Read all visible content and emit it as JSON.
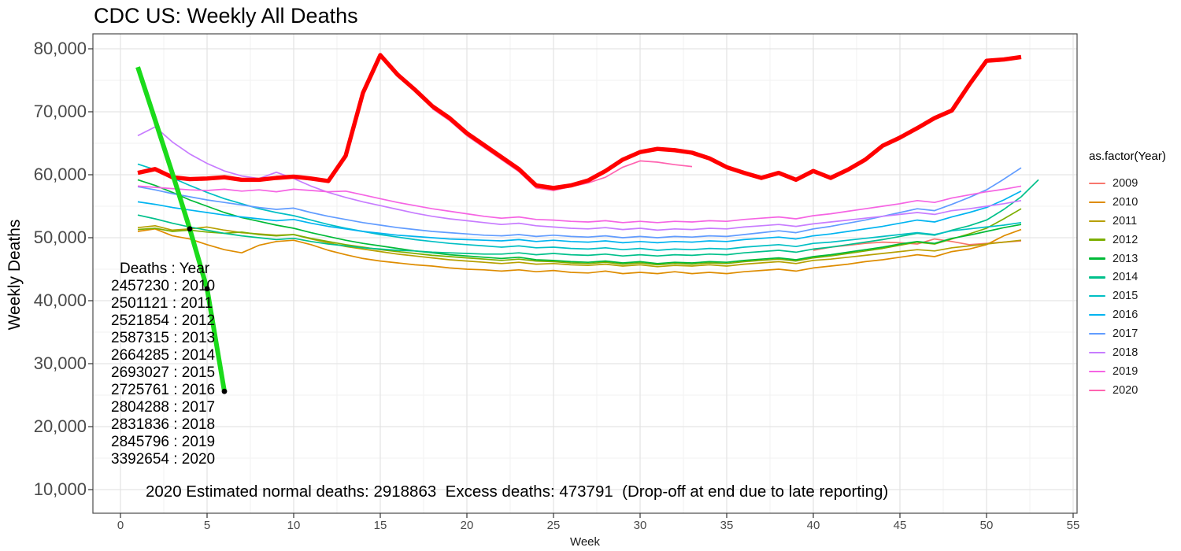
{
  "page": {
    "title": "CDC US: Weekly All Deaths"
  },
  "axes": {
    "x": {
      "label": "Week",
      "tick_values": [
        0,
        5,
        10,
        15,
        20,
        25,
        30,
        35,
        40,
        45,
        50,
        55
      ]
    },
    "y": {
      "label": "Weekly Deaths",
      "tick_values": [
        10000,
        20000,
        30000,
        40000,
        50000,
        60000,
        70000,
        80000
      ],
      "tick_labels": [
        "10,000",
        "20,000",
        "30,000",
        "40,000",
        "50,000",
        "60,000",
        "70,000",
        "80,000"
      ]
    }
  },
  "legend": {
    "title": "as.factor(Year)",
    "items": [
      {
        "year": "2009",
        "color": "#F8766D"
      },
      {
        "year": "2010",
        "color": "#DE8C00"
      },
      {
        "year": "2011",
        "color": "#B79F00"
      },
      {
        "year": "2012",
        "color": "#7CAE00"
      },
      {
        "year": "2013",
        "color": "#00BA38"
      },
      {
        "year": "2014",
        "color": "#00C08B"
      },
      {
        "year": "2015",
        "color": "#00BFC4"
      },
      {
        "year": "2016",
        "color": "#00B4F0"
      },
      {
        "year": "2017",
        "color": "#619CFF"
      },
      {
        "year": "2018",
        "color": "#C77CFF"
      },
      {
        "year": "2019",
        "color": "#F564E3"
      },
      {
        "year": "2020",
        "color": "#FF64B0"
      }
    ]
  },
  "annotations": {
    "deaths_table": {
      "header": "Deaths : Year",
      "rows": [
        "2457230 : 2010",
        "2501121 : 2011",
        "2521854 : 2012",
        "2587315 : 2013",
        "2664285 : 2014",
        "2693027 : 2015",
        "2725761 : 2016",
        "2804288 : 2017",
        "2831836 : 2018",
        "2845796 : 2019",
        "3392654 : 2020"
      ]
    },
    "bottom_note": "2020 Estimated normal deaths: 2918863  Excess deaths: 473791  (Drop-off at end due to late reporting)"
  },
  "chart_data": {
    "type": "line",
    "title": "CDC US: Weekly All Deaths",
    "xlabel": "Week",
    "ylabel": "Weekly Deaths",
    "xlim": [
      -1.6,
      55.2
    ],
    "ylim": [
      6250,
      82500
    ],
    "grid": "major+minor",
    "legend_position": "right",
    "series": [
      {
        "name": "2009",
        "color": "#F8766D",
        "width": 1.7,
        "x": [
          40,
          41,
          42,
          43,
          44,
          45,
          46,
          47,
          48,
          49,
          50,
          51,
          52
        ],
        "y": [
          48000,
          48500,
          48800,
          49100,
          49300,
          49200,
          49000,
          49800,
          49400,
          48900,
          49100,
          49300,
          49500
        ]
      },
      {
        "name": "2010",
        "color": "#DE8C00",
        "width": 1.7,
        "x_start": 1,
        "y": [
          51000,
          51400,
          50300,
          49800,
          48900,
          48100,
          47600,
          48800,
          49400,
          49600,
          48900,
          48000,
          47300,
          46700,
          46300,
          46000,
          45700,
          45500,
          45200,
          45000,
          44900,
          44700,
          44900,
          44600,
          44800,
          44500,
          44400,
          44700,
          44300,
          44500,
          44300,
          44600,
          44300,
          44500,
          44300,
          44600,
          44800,
          45000,
          44700,
          45200,
          45500,
          45800,
          46200,
          46500,
          46900,
          47300,
          47000,
          47800,
          48200,
          48900,
          50300,
          51300
        ]
      },
      {
        "name": "2011",
        "color": "#B79F00",
        "width": 1.7,
        "x_start": 1,
        "y": [
          51600,
          51900,
          51200,
          51400,
          51700,
          51200,
          50800,
          50600,
          50400,
          50500,
          49800,
          49200,
          48600,
          48200,
          47800,
          47400,
          47100,
          46800,
          46500,
          46300,
          46100,
          45900,
          46100,
          45800,
          45900,
          45700,
          45600,
          45800,
          45500,
          45700,
          45400,
          45600,
          45500,
          45700,
          45500,
          45800,
          46000,
          46200,
          45900,
          46400,
          46600,
          46900,
          47200,
          47500,
          47800,
          48100,
          47900,
          48400,
          48700,
          49000,
          49300,
          49600
        ]
      },
      {
        "name": "2012",
        "color": "#7CAE00",
        "width": 1.7,
        "x_start": 1,
        "y": [
          51300,
          51500,
          51000,
          51200,
          50900,
          50700,
          50900,
          50500,
          50300,
          50500,
          49900,
          49400,
          48900,
          48500,
          48100,
          47800,
          47500,
          47200,
          47000,
          46800,
          46600,
          46400,
          46600,
          46300,
          46200,
          46000,
          45900,
          46100,
          45800,
          46000,
          45700,
          45900,
          45800,
          46000,
          45900,
          46200,
          46400,
          46600,
          46300,
          46800,
          47100,
          47500,
          47900,
          48300,
          48800,
          49300,
          49000,
          49800,
          50600,
          51500,
          53000,
          54600
        ]
      },
      {
        "name": "2013",
        "color": "#00BA38",
        "width": 1.7,
        "x_start": 1,
        "y": [
          59200,
          58300,
          57200,
          56000,
          55000,
          54000,
          53200,
          52600,
          52000,
          51500,
          50800,
          50200,
          49600,
          49100,
          48700,
          48300,
          47900,
          47600,
          47300,
          47100,
          46900,
          46700,
          46900,
          46500,
          46400,
          46200,
          46100,
          46300,
          46000,
          46200,
          45900,
          46100,
          46000,
          46200,
          46100,
          46400,
          46600,
          46800,
          46500,
          47000,
          47300,
          47700,
          48100,
          48500,
          49000,
          49400,
          49100,
          49900,
          50400,
          51000,
          51600,
          52100
        ]
      },
      {
        "name": "2014",
        "color": "#00C08B",
        "width": 1.7,
        "x_start": 1,
        "y": [
          53600,
          53000,
          52300,
          51700,
          51200,
          50700,
          50300,
          50000,
          49700,
          49900,
          49400,
          49000,
          48700,
          48400,
          48200,
          48000,
          47900,
          47700,
          47600,
          47500,
          47400,
          47400,
          47600,
          47300,
          47500,
          47300,
          47200,
          47400,
          47100,
          47300,
          47100,
          47300,
          47200,
          47400,
          47300,
          47600,
          47800,
          48000,
          47700,
          48200,
          48500,
          48900,
          49300,
          49700,
          50200,
          50700,
          50400,
          51200,
          51900,
          52800,
          54500,
          56500,
          59200
        ]
      },
      {
        "name": "2015",
        "color": "#00BFC4",
        "width": 1.7,
        "x_start": 1,
        "y": [
          61700,
          60800,
          59500,
          58300,
          57200,
          56200,
          55400,
          54600,
          54000,
          53500,
          52800,
          52100,
          51500,
          51000,
          50500,
          50100,
          49700,
          49400,
          49100,
          48900,
          48700,
          48500,
          48700,
          48400,
          48500,
          48300,
          48200,
          48400,
          48100,
          48300,
          48000,
          48200,
          48100,
          48300,
          48200,
          48500,
          48700,
          48900,
          48600,
          49100,
          49300,
          49600,
          49900,
          50200,
          50500,
          50800,
          50500,
          51100,
          51400,
          51700,
          52000,
          52400
        ]
      },
      {
        "name": "2016",
        "color": "#00B4F0",
        "width": 1.7,
        "x_start": 1,
        "y": [
          55700,
          55300,
          54800,
          54400,
          54000,
          53600,
          53300,
          53000,
          52700,
          52900,
          52300,
          51800,
          51400,
          51000,
          50700,
          50400,
          50200,
          50000,
          49800,
          49700,
          49600,
          49500,
          49700,
          49400,
          49600,
          49400,
          49300,
          49500,
          49200,
          49400,
          49200,
          49400,
          49300,
          49500,
          49400,
          49700,
          49900,
          50100,
          49800,
          50300,
          50600,
          51000,
          51400,
          51800,
          52300,
          52800,
          52500,
          53300,
          54000,
          54800,
          56000,
          57400
        ]
      },
      {
        "name": "2017",
        "color": "#619CFF",
        "width": 1.7,
        "x_start": 1,
        "y": [
          58100,
          57600,
          57000,
          56500,
          56000,
          55600,
          55200,
          54800,
          54500,
          54700,
          54000,
          53400,
          52900,
          52400,
          52000,
          51600,
          51300,
          51000,
          50800,
          50600,
          50400,
          50300,
          50500,
          50200,
          50400,
          50200,
          50100,
          50300,
          50000,
          50200,
          50000,
          50200,
          50100,
          50300,
          50200,
          50500,
          50800,
          51100,
          50800,
          51400,
          51800,
          52300,
          52800,
          53400,
          54000,
          54600,
          54300,
          55300,
          56400,
          57600,
          59300,
          61100
        ]
      },
      {
        "name": "2018",
        "color": "#C77CFF",
        "width": 1.7,
        "x_start": 1,
        "y": [
          66200,
          67600,
          65200,
          63300,
          61800,
          60600,
          59800,
          59400,
          60400,
          59400,
          58200,
          57200,
          56400,
          55700,
          55100,
          54500,
          53900,
          53400,
          53000,
          52700,
          52400,
          52100,
          52300,
          51900,
          51700,
          51500,
          51400,
          51600,
          51300,
          51500,
          51200,
          51400,
          51300,
          51500,
          51400,
          51700,
          51900,
          52100,
          51800,
          52200,
          52500,
          52800,
          53100,
          53400,
          53700,
          54000,
          53700,
          54300,
          54600,
          55000,
          55400,
          55900
        ]
      },
      {
        "name": "2019",
        "color": "#F564E3",
        "width": 1.7,
        "x_start": 1,
        "y": [
          58200,
          58000,
          57800,
          57600,
          57500,
          57700,
          57400,
          57600,
          57300,
          57700,
          57500,
          57300,
          57400,
          56800,
          56200,
          55600,
          55100,
          54600,
          54200,
          53800,
          53400,
          53100,
          53300,
          52900,
          52800,
          52600,
          52500,
          52700,
          52400,
          52600,
          52400,
          52600,
          52500,
          52700,
          52600,
          52900,
          53100,
          53300,
          53000,
          53500,
          53800,
          54200,
          54600,
          55000,
          55400,
          55900,
          55600,
          56300,
          56800,
          57300,
          57700,
          58200
        ]
      },
      {
        "name": "2020",
        "color": "#FF64B0",
        "width": 1.7,
        "x_start": 18,
        "y": [
          70500,
          68600,
          66200,
          64300,
          62400,
          60500,
          57900,
          57500,
          58100,
          58700,
          59600,
          61200,
          62200,
          62000,
          61600,
          61300
        ]
      },
      {
        "name": "2020-red-highlight",
        "color": "#FF0000",
        "width": 5.4,
        "x_start": 1,
        "y": [
          60300,
          60900,
          59600,
          59300,
          59400,
          59600,
          59200,
          59200,
          59500,
          59700,
          59400,
          59000,
          63000,
          73000,
          79000,
          75900,
          73500,
          70900,
          69000,
          66600,
          64700,
          62800,
          60900,
          58300,
          57900,
          58300,
          59100,
          60600,
          62400,
          63600,
          64100,
          63900,
          63500,
          62600,
          61200,
          60300,
          59500,
          60300,
          59200,
          60600,
          59500,
          60800,
          62400,
          64600,
          65900,
          67400,
          69000,
          70200,
          74300,
          78100,
          78300,
          78700
        ]
      },
      {
        "name": "dropoff-late-reporting",
        "color": "#1BDB1B",
        "width": 6,
        "x_start": 1,
        "y": [
          77100,
          68700,
          60200,
          51400,
          41900,
          25600
        ]
      }
    ],
    "points": [
      {
        "x": 4,
        "y": 51400,
        "color": "#000000"
      },
      {
        "x": 5,
        "y": 41900,
        "color": "#000000"
      },
      {
        "x": 6,
        "y": 25600,
        "color": "#000000"
      }
    ]
  }
}
